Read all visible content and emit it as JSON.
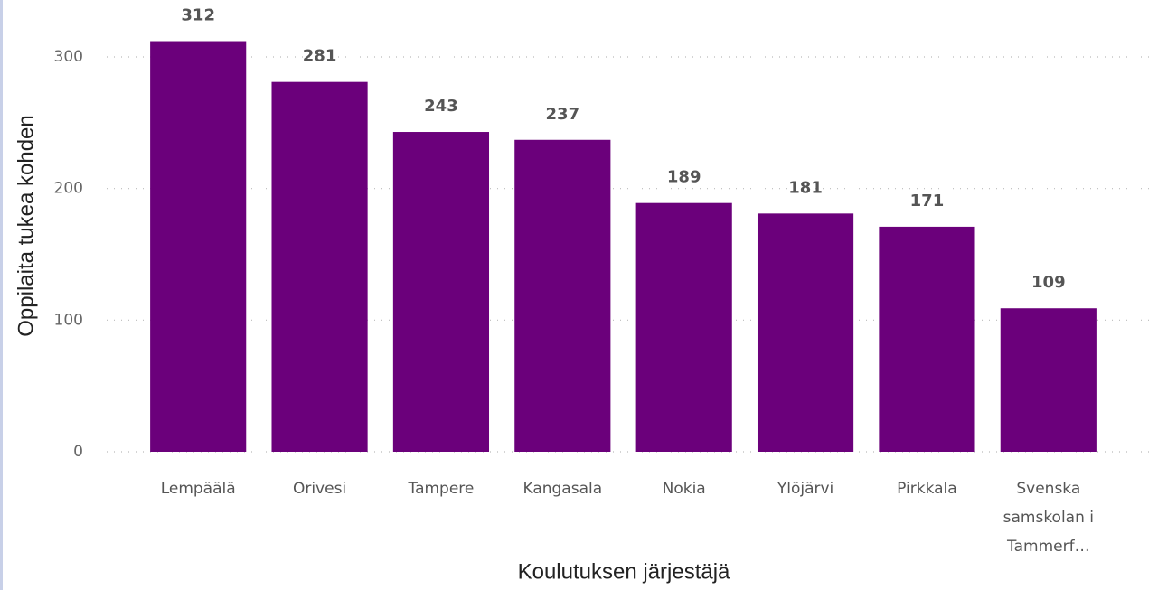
{
  "chart_data": {
    "type": "bar",
    "x_label": "Koulutuksen järjestäjä",
    "y_label": "Oppilaita tukea kohden",
    "categories": [
      "Lempäälä",
      "Orivesi",
      "Tampere",
      "Kangasala",
      "Nokia",
      "Ylöjärvi",
      "Pirkkala",
      "Svenska samskolan i Tammerf…"
    ],
    "values": [
      312,
      281,
      243,
      237,
      189,
      181,
      171,
      109
    ],
    "color": "#6b007b",
    "ylim": [
      0,
      320
    ],
    "yticks": [
      0,
      100,
      200,
      300
    ],
    "grid": true
  }
}
